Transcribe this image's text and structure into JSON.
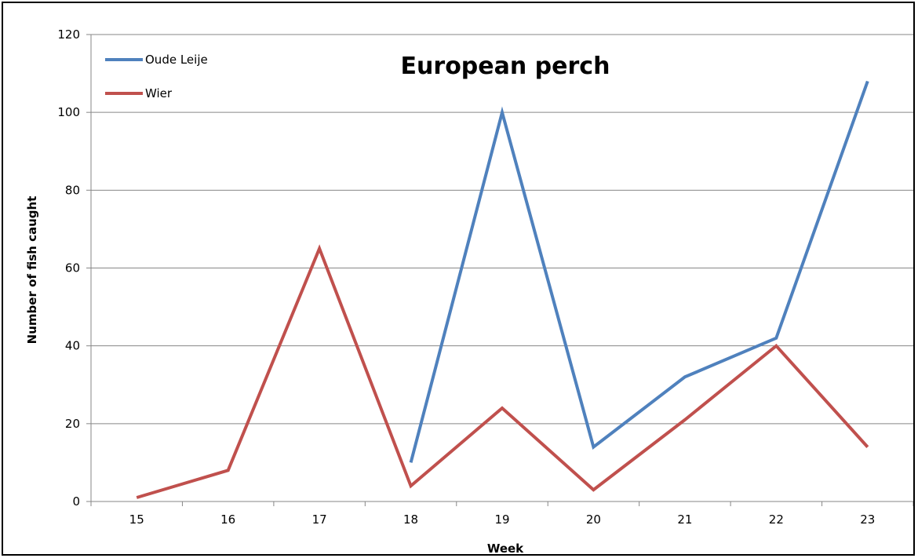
{
  "chart_data": {
    "type": "line",
    "title": "European perch",
    "xlabel": "Week",
    "ylabel": "Number of fish caught",
    "categories": [
      "15",
      "16",
      "17",
      "18",
      "19",
      "20",
      "21",
      "22",
      "23"
    ],
    "ylim": [
      0,
      120
    ],
    "yticks": [
      "0",
      "20",
      "40",
      "60",
      "80",
      "100",
      "120"
    ],
    "grid": true,
    "legend_position": "top-left",
    "series": [
      {
        "name": "Oude Leije",
        "color": "#4F81BD",
        "values": [
          null,
          null,
          null,
          10,
          100,
          14,
          32,
          42,
          108
        ]
      },
      {
        "name": "Wier",
        "color": "#C0504D",
        "values": [
          1,
          8,
          65,
          4,
          24,
          3,
          21,
          40,
          14
        ]
      }
    ]
  }
}
